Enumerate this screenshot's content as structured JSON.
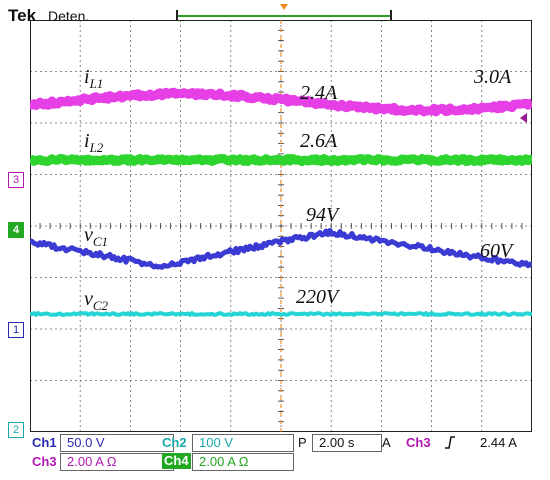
{
  "header": {
    "brand": "Tek",
    "status": "Deten.",
    "trigger_position_marker": "T"
  },
  "colors": {
    "ch1": "#3b3bd4",
    "ch2": "#25d5d5",
    "ch3": "#e63fe6",
    "ch4": "#2ed52e",
    "grid": "#6a6a6a",
    "trigger_orange": "#f08a1e"
  },
  "channel_markers": {
    "m3": "3",
    "m4": "4",
    "m1": "1",
    "m2": "2"
  },
  "traces": {
    "iL1": {
      "symbol": "i",
      "sub": "L1",
      "values": [
        "2.4A",
        "3.0A"
      ]
    },
    "iL2": {
      "symbol": "i",
      "sub": "L2",
      "value": "2.6A"
    },
    "vC1": {
      "symbol": "v",
      "sub": "C1",
      "values": [
        "94V",
        "60V"
      ]
    },
    "vC2": {
      "symbol": "v",
      "sub": "C2",
      "value": "220V"
    }
  },
  "readout": {
    "ch1_label": "Ch1",
    "ch1_value": "50.0 V",
    "ch2_label": "Ch2",
    "ch2_value": "100 V",
    "timebase_label": "P",
    "timebase_value": "2.00 s",
    "trigger_label": "A",
    "trigger_source": "Ch3",
    "trigger_slope_icon": "rising-edge",
    "trigger_level": "2.44 A",
    "ch3_label": "Ch3",
    "ch3_value": "2.00 A Ω",
    "ch4_label": "Ch4",
    "ch4_value": "2.00 A Ω"
  }
}
